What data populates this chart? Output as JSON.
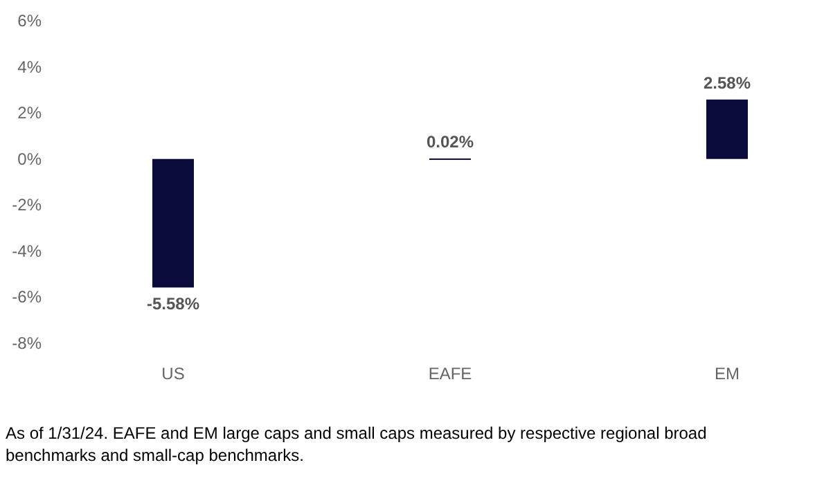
{
  "chart_data": {
    "type": "bar",
    "categories": [
      "US",
      "EAFE",
      "EM"
    ],
    "values": [
      -5.58,
      0.02,
      2.58
    ],
    "color": "#0b0b3b",
    "value_labels": [
      "-5.58%",
      "0.02%",
      "2.58%"
    ],
    "ylim": [
      -8,
      6
    ],
    "yticks": [
      {
        "value": -8,
        "label": "-8%"
      },
      {
        "value": -6,
        "label": "-6%"
      },
      {
        "value": -4,
        "label": "-4%"
      },
      {
        "value": -2,
        "label": "-2%"
      },
      {
        "value": 0,
        "label": "0%"
      },
      {
        "value": 2,
        "label": "2%"
      },
      {
        "value": 4,
        "label": "4%"
      },
      {
        "value": 6,
        "label": "6%"
      }
    ],
    "grid": false,
    "annotations": [
      "As of 1/31/24. EAFE and EM large caps and small caps measured by respective regional broad benchmarks and small-cap benchmarks."
    ]
  }
}
